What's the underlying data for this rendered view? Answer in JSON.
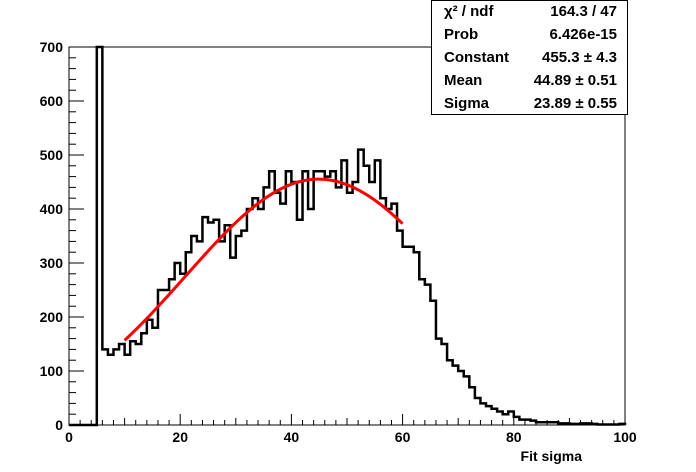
{
  "chart_data": {
    "type": "line",
    "title": "",
    "xlabel": "Fit sigma",
    "ylabel": "",
    "xlim": [
      0,
      100
    ],
    "ylim": [
      0,
      700
    ],
    "x_ticks": [
      0,
      20,
      40,
      60,
      80,
      100
    ],
    "y_ticks": [
      0,
      100,
      200,
      300,
      400,
      500,
      600,
      700
    ],
    "histogram": {
      "bin_width": 1,
      "bins_start": [
        0,
        1,
        2,
        3,
        4,
        5,
        6,
        7,
        8,
        9,
        10,
        11,
        12,
        13,
        14,
        15,
        16,
        17,
        18,
        19,
        20,
        21,
        22,
        23,
        24,
        25,
        26,
        27,
        28,
        29,
        30,
        31,
        32,
        33,
        34,
        35,
        36,
        37,
        38,
        39,
        40,
        41,
        42,
        43,
        44,
        45,
        46,
        47,
        48,
        49,
        50,
        51,
        52,
        53,
        54,
        55,
        56,
        57,
        58,
        59,
        60,
        61,
        62,
        63,
        64,
        65,
        66,
        67,
        68,
        69,
        70,
        71,
        72,
        73,
        74,
        75,
        76,
        77,
        78,
        79,
        80,
        81,
        82,
        83,
        84,
        85,
        86,
        87,
        88,
        89,
        90,
        91,
        92,
        93,
        94,
        95,
        96,
        97,
        98,
        99
      ],
      "counts": [
        0,
        0,
        0,
        0,
        0,
        700,
        140,
        130,
        140,
        150,
        130,
        155,
        150,
        170,
        195,
        180,
        250,
        250,
        270,
        300,
        280,
        320,
        350,
        340,
        385,
        375,
        380,
        340,
        370,
        310,
        350,
        360,
        400,
        420,
        400,
        440,
        470,
        430,
        410,
        470,
        450,
        380,
        470,
        400,
        470,
        470,
        460,
        470,
        440,
        490,
        430,
        450,
        510,
        480,
        450,
        490,
        420,
        400,
        410,
        360,
        330,
        330,
        320,
        270,
        260,
        230,
        160,
        150,
        120,
        110,
        100,
        90,
        70,
        50,
        40,
        35,
        30,
        25,
        20,
        25,
        15,
        10,
        10,
        8,
        5,
        5,
        5,
        5,
        3,
        3,
        2,
        2,
        3,
        3,
        2,
        1,
        1,
        1,
        1,
        2
      ]
    },
    "fit": {
      "function": "gaus",
      "constant": 455.3,
      "mean": 44.89,
      "sigma": 23.89,
      "range": [
        10,
        60
      ],
      "color": "#ff0000"
    },
    "line_color": "#000000"
  },
  "stats": [
    {
      "name": "χ² / ndf",
      "value": "164.3 / 47"
    },
    {
      "name": "Prob",
      "value": "6.426e-15"
    },
    {
      "name": "Constant",
      "value": "455.3 ± 4.3"
    },
    {
      "name": "Mean",
      "value": "44.89 ± 0.51"
    },
    {
      "name": "Sigma",
      "value": "23.89 ± 0.55"
    }
  ]
}
